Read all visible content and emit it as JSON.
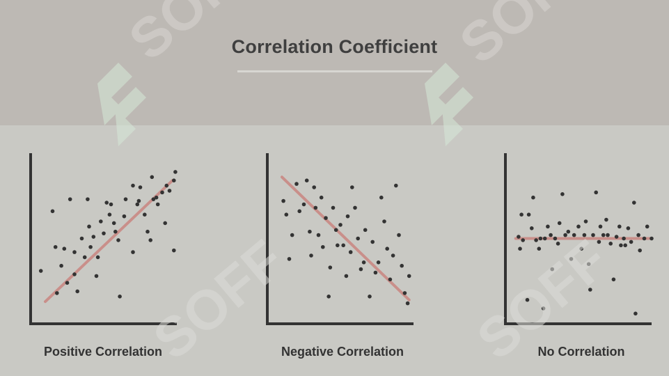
{
  "title": "Correlation Coefficient",
  "colors": {
    "background": "#c9c9c4",
    "header": "#bdb9b4",
    "axis": "#333333",
    "point": "#333333",
    "trend_line": "#c98f8a",
    "watermark": "#d6e9d8"
  },
  "watermark": {
    "text": "SOFF"
  },
  "chart_data": [
    {
      "type": "scatter",
      "title": "Positive Correlation",
      "xlabel": "",
      "ylabel": "",
      "xlim": [
        0,
        100
      ],
      "ylim": [
        0,
        100
      ],
      "trend_line": [
        [
          10,
          13
        ],
        [
          97,
          84
        ]
      ],
      "points": [
        [
          7,
          31
        ],
        [
          15,
          66
        ],
        [
          17,
          45
        ],
        [
          18,
          18
        ],
        [
          21,
          34
        ],
        [
          23,
          44
        ],
        [
          25,
          24
        ],
        [
          27,
          73
        ],
        [
          30,
          42
        ],
        [
          30,
          29
        ],
        [
          32,
          19
        ],
        [
          35,
          50
        ],
        [
          37,
          39
        ],
        [
          39,
          73
        ],
        [
          40,
          57
        ],
        [
          41,
          45
        ],
        [
          43,
          51
        ],
        [
          45,
          28
        ],
        [
          46,
          39
        ],
        [
          48,
          60
        ],
        [
          50,
          53
        ],
        [
          52,
          71
        ],
        [
          54,
          64
        ],
        [
          55,
          70
        ],
        [
          57,
          59
        ],
        [
          58,
          54
        ],
        [
          60,
          49
        ],
        [
          61,
          16
        ],
        [
          64,
          63
        ],
        [
          65,
          73
        ],
        [
          70,
          81
        ],
        [
          70,
          42
        ],
        [
          73,
          70
        ],
        [
          74,
          72
        ],
        [
          75,
          80
        ],
        [
          78,
          64
        ],
        [
          80,
          54
        ],
        [
          82,
          49
        ],
        [
          83,
          86
        ],
        [
          84,
          73
        ],
        [
          86,
          74
        ],
        [
          87,
          70
        ],
        [
          90,
          77
        ],
        [
          92,
          59
        ],
        [
          93,
          81
        ],
        [
          95,
          78
        ],
        [
          98,
          84
        ],
        [
          98,
          43
        ],
        [
          99,
          89
        ]
      ]
    },
    {
      "type": "scatter",
      "title": "Negative Correlation",
      "xlabel": "",
      "ylabel": "",
      "xlim": [
        0,
        100
      ],
      "ylim": [
        0,
        100
      ],
      "trend_line": [
        [
          10,
          86
        ],
        [
          97,
          14
        ]
      ],
      "points": [
        [
          11,
          72
        ],
        [
          13,
          64
        ],
        [
          15,
          38
        ],
        [
          17,
          52
        ],
        [
          20,
          82
        ],
        [
          22,
          66
        ],
        [
          25,
          70
        ],
        [
          27,
          84
        ],
        [
          29,
          54
        ],
        [
          30,
          40
        ],
        [
          32,
          80
        ],
        [
          33,
          68
        ],
        [
          35,
          52
        ],
        [
          37,
          74
        ],
        [
          38,
          45
        ],
        [
          40,
          62
        ],
        [
          42,
          16
        ],
        [
          43,
          33
        ],
        [
          45,
          68
        ],
        [
          47,
          55
        ],
        [
          48,
          46
        ],
        [
          50,
          58
        ],
        [
          52,
          46
        ],
        [
          54,
          28
        ],
        [
          55,
          63
        ],
        [
          57,
          42
        ],
        [
          58,
          80
        ],
        [
          60,
          68
        ],
        [
          62,
          50
        ],
        [
          64,
          32
        ],
        [
          66,
          36
        ],
        [
          67,
          55
        ],
        [
          70,
          16
        ],
        [
          72,
          48
        ],
        [
          74,
          30
        ],
        [
          76,
          36
        ],
        [
          78,
          74
        ],
        [
          80,
          60
        ],
        [
          82,
          44
        ],
        [
          84,
          26
        ],
        [
          86,
          40
        ],
        [
          88,
          81
        ],
        [
          90,
          52
        ],
        [
          92,
          34
        ],
        [
          94,
          18
        ],
        [
          96,
          12
        ],
        [
          97,
          28
        ]
      ]
    },
    {
      "type": "scatter",
      "title": "No Correlation",
      "xlabel": "",
      "ylabel": "",
      "xlim": [
        0,
        100
      ],
      "ylim": [
        0,
        100
      ],
      "trend_line": [
        [
          7,
          50
        ],
        [
          100,
          50
        ]
      ],
      "points": [
        [
          9,
          51
        ],
        [
          10,
          44
        ],
        [
          11,
          64
        ],
        [
          12,
          49
        ],
        [
          15,
          14
        ],
        [
          16,
          64
        ],
        [
          18,
          56
        ],
        [
          19,
          74
        ],
        [
          21,
          49
        ],
        [
          23,
          44
        ],
        [
          24,
          50
        ],
        [
          26,
          9
        ],
        [
          27,
          50
        ],
        [
          29,
          57
        ],
        [
          31,
          52
        ],
        [
          32,
          32
        ],
        [
          34,
          50
        ],
        [
          36,
          47
        ],
        [
          37,
          59
        ],
        [
          39,
          76
        ],
        [
          41,
          52
        ],
        [
          43,
          54
        ],
        [
          45,
          38
        ],
        [
          47,
          52
        ],
        [
          50,
          57
        ],
        [
          52,
          44
        ],
        [
          54,
          52
        ],
        [
          55,
          60
        ],
        [
          57,
          35
        ],
        [
          58,
          20
        ],
        [
          60,
          52
        ],
        [
          62,
          77
        ],
        [
          64,
          48
        ],
        [
          65,
          57
        ],
        [
          67,
          52
        ],
        [
          69,
          61
        ],
        [
          70,
          52
        ],
        [
          72,
          47
        ],
        [
          74,
          26
        ],
        [
          76,
          51
        ],
        [
          78,
          57
        ],
        [
          79,
          46
        ],
        [
          81,
          50
        ],
        [
          82,
          46
        ],
        [
          84,
          56
        ],
        [
          86,
          48
        ],
        [
          88,
          71
        ],
        [
          89,
          6
        ],
        [
          91,
          52
        ],
        [
          92,
          43
        ],
        [
          95,
          50
        ],
        [
          97,
          57
        ],
        [
          100,
          50
        ]
      ]
    }
  ]
}
